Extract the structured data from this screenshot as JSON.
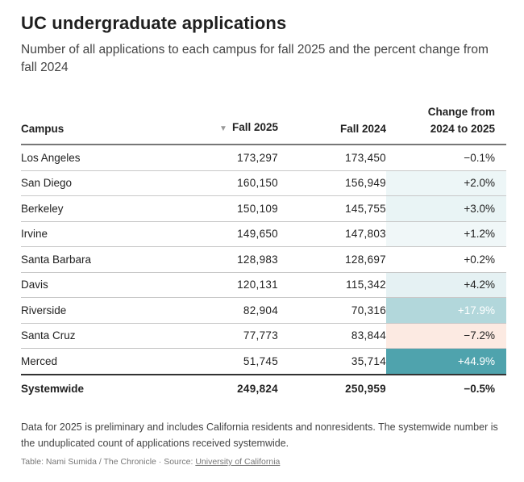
{
  "title": "UC undergraduate applications",
  "subtitle": "Number of all applications to each campus for fall 2025 and the percent change from fall 2024",
  "chart_data": {
    "type": "table",
    "columns": [
      "Campus",
      "Fall 2025",
      "Fall 2024",
      "Change from 2024 to 2025"
    ],
    "sorted_column": "Fall 2025",
    "rows": [
      {
        "campus": "Los Angeles",
        "fall2025": "173,297",
        "fall2024": "173,450",
        "change": "−0.1%",
        "change_value": -0.1
      },
      {
        "campus": "San Diego",
        "fall2025": "160,150",
        "fall2024": "156,949",
        "change": "+2.0%",
        "change_value": 2.0
      },
      {
        "campus": "Berkeley",
        "fall2025": "150,109",
        "fall2024": "145,755",
        "change": "+3.0%",
        "change_value": 3.0
      },
      {
        "campus": "Irvine",
        "fall2025": "149,650",
        "fall2024": "147,803",
        "change": "+1.2%",
        "change_value": 1.2
      },
      {
        "campus": "Santa Barbara",
        "fall2025": "128,983",
        "fall2024": "128,697",
        "change": "+0.2%",
        "change_value": 0.2
      },
      {
        "campus": "Davis",
        "fall2025": "120,131",
        "fall2024": "115,342",
        "change": "+4.2%",
        "change_value": 4.2
      },
      {
        "campus": "Riverside",
        "fall2025": "82,904",
        "fall2024": "70,316",
        "change": "+17.9%",
        "change_value": 17.9
      },
      {
        "campus": "Santa Cruz",
        "fall2025": "77,773",
        "fall2024": "83,844",
        "change": "−7.2%",
        "change_value": -7.2
      },
      {
        "campus": "Merced",
        "fall2025": "51,745",
        "fall2024": "35,714",
        "change": "+44.9%",
        "change_value": 44.9
      }
    ],
    "total": {
      "campus": "Systemwide",
      "fall2025": "249,824",
      "fall2024": "250,959",
      "change": "−0.5%",
      "change_value": -0.5
    },
    "colors": {
      "positive": "#4fa3ad",
      "negative": "#f4a582"
    }
  },
  "header": {
    "campus": "Campus",
    "fall2025": "Fall 2025",
    "fall2024": "Fall 2024",
    "change_line1": "Change from",
    "change_line2": "2024 to 2025"
  },
  "note": "Data for 2025 is preliminary and includes California residents and nonresidents. The systemwide number is the unduplicated count of applications received systemwide.",
  "credit": {
    "prefix": "Table: Nami Sumida / The Chronicle · Source: ",
    "source": "University of California"
  }
}
